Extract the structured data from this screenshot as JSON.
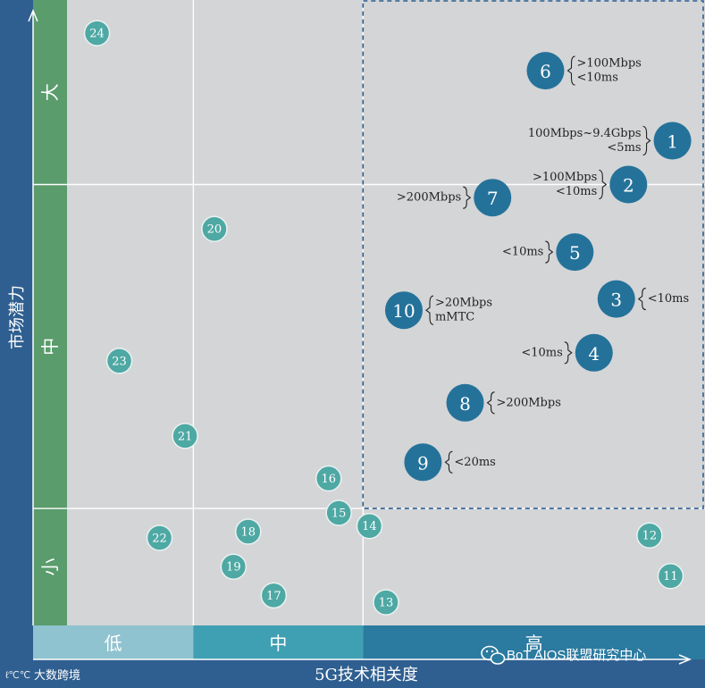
{
  "colors": {
    "background": "#d4d5d7",
    "frame": "#2f5f90",
    "bubble_large": "#24729a",
    "bubble_small": "#4ea8a3",
    "bubble_text": "#ffffff",
    "ybar_green": "#5a9c6c",
    "band_low": "#8fc3cf",
    "band_mid": "#3f9fb3",
    "band_high": "#2b7aa0",
    "grid": "#ffffff",
    "dashed": "#2f5f90",
    "note_text": "#222222"
  },
  "watermark": {
    "left": "大数跨境",
    "right": "BoT AIOS联盟研究中心"
  },
  "chart_data": {
    "type": "scatter",
    "title": "",
    "xlabel": "5G技术相关度",
    "ylabel": "市场潜力",
    "xlim": [
      0,
      10
    ],
    "ylim": [
      0,
      10
    ],
    "x_bands": [
      {
        "label": "低",
        "from": 0,
        "to": 1.98
      },
      {
        "label": "中",
        "from": 1.98,
        "to": 4.64
      },
      {
        "label": "高",
        "from": 4.64,
        "to": 10
      }
    ],
    "y_bands": [
      {
        "label": "小",
        "from": 0,
        "to": 1.87
      },
      {
        "label": "中",
        "from": 1.87,
        "to": 7.05
      },
      {
        "label": "大",
        "from": 7.05,
        "to": 10
      }
    ],
    "grid": true,
    "highlight_region": {
      "x": [
        4.64,
        10
      ],
      "y": [
        1.87,
        10
      ],
      "style": "dashed"
    },
    "points": [
      {
        "id": "1",
        "x": 9.49,
        "y": 7.75,
        "size": "large",
        "note": [
          "100Mbps~9.4Gbps",
          "<5ms"
        ],
        "note_side": "left"
      },
      {
        "id": "2",
        "x": 8.8,
        "y": 7.05,
        "size": "large",
        "note": [
          ">100Mbps",
          "<10ms"
        ],
        "note_side": "left"
      },
      {
        "id": "3",
        "x": 8.61,
        "y": 5.22,
        "size": "large",
        "note": [
          "<10ms"
        ],
        "note_side": "right"
      },
      {
        "id": "4",
        "x": 8.26,
        "y": 4.36,
        "size": "large",
        "note": [
          "<10ms"
        ],
        "note_side": "left"
      },
      {
        "id": "5",
        "x": 7.96,
        "y": 5.97,
        "size": "large",
        "note": [
          "<10ms"
        ],
        "note_side": "left"
      },
      {
        "id": "6",
        "x": 7.5,
        "y": 8.87,
        "size": "large",
        "note": [
          ">100Mbps",
          "<10ms"
        ],
        "note_side": "right"
      },
      {
        "id": "7",
        "x": 6.67,
        "y": 6.84,
        "size": "large",
        "note": [
          ">200Mbps"
        ],
        "note_side": "left"
      },
      {
        "id": "8",
        "x": 6.24,
        "y": 3.56,
        "size": "large",
        "note": [
          ">200Mbps"
        ],
        "note_side": "right"
      },
      {
        "id": "9",
        "x": 5.58,
        "y": 2.61,
        "size": "large",
        "note": [
          "<20ms"
        ],
        "note_side": "right"
      },
      {
        "id": "10",
        "x": 5.28,
        "y": 5.04,
        "size": "large",
        "note": [
          ">20Mbps",
          "mMTC"
        ],
        "note_side": "right"
      },
      {
        "id": "11",
        "x": 9.46,
        "y": 0.79,
        "size": "small"
      },
      {
        "id": "12",
        "x": 9.13,
        "y": 1.44,
        "size": "small"
      },
      {
        "id": "13",
        "x": 5.0,
        "y": 0.37,
        "size": "small"
      },
      {
        "id": "14",
        "x": 4.74,
        "y": 1.59,
        "size": "small"
      },
      {
        "id": "15",
        "x": 4.26,
        "y": 1.8,
        "size": "small"
      },
      {
        "id": "16",
        "x": 4.1,
        "y": 2.35,
        "size": "small"
      },
      {
        "id": "17",
        "x": 3.24,
        "y": 0.48,
        "size": "small"
      },
      {
        "id": "18",
        "x": 2.84,
        "y": 1.5,
        "size": "small"
      },
      {
        "id": "19",
        "x": 2.61,
        "y": 0.94,
        "size": "small"
      },
      {
        "id": "20",
        "x": 2.31,
        "y": 6.34,
        "size": "small"
      },
      {
        "id": "21",
        "x": 1.85,
        "y": 3.03,
        "size": "small"
      },
      {
        "id": "22",
        "x": 1.45,
        "y": 1.4,
        "size": "small"
      },
      {
        "id": "23",
        "x": 0.82,
        "y": 4.23,
        "size": "small"
      },
      {
        "id": "24",
        "x": 0.47,
        "y": 9.47,
        "size": "small"
      }
    ]
  }
}
